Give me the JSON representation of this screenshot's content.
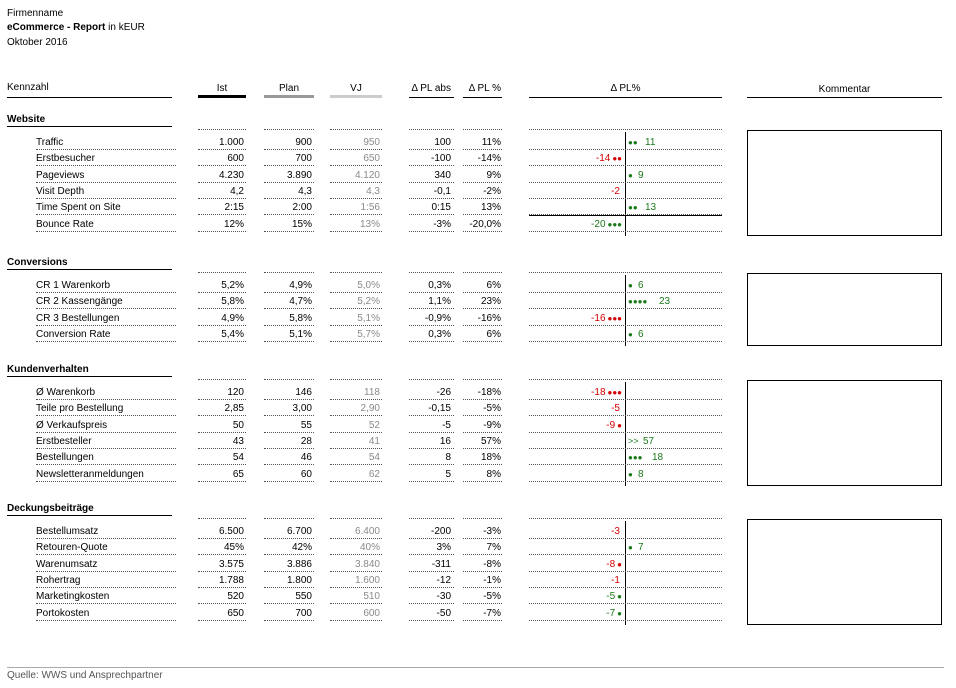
{
  "header": {
    "company": "Firmenname",
    "title_bold": "eCommerce - Report",
    "title_suffix": " in kEUR",
    "period": "Oktober 2016"
  },
  "columns": {
    "kennzahl": "Kennzahl",
    "ist": "Ist",
    "plan": "Plan",
    "vj": "VJ",
    "dpl_abs": "Δ PL abs",
    "dpl_pct": "Δ PL %",
    "dpl_chart": "Δ PL%",
    "kommentar": "Kommentar"
  },
  "colors": {
    "positive": "#1a7a1a",
    "negative": "#d40000",
    "vj": "#8a8a8a",
    "plan_bar": "#999999",
    "vj_bar": "#cccccc"
  },
  "sections": [
    {
      "title": "Website",
      "rows": [
        {
          "name": "Traffic",
          "ist": "1.000",
          "plan": "900",
          "vj": "950",
          "abs": "100",
          "pct": "11%",
          "bar": 11,
          "bar_label": "11",
          "dots": "●●"
        },
        {
          "name": "Erstbesucher",
          "ist": "600",
          "plan": "700",
          "vj": "650",
          "abs": "-100",
          "pct": "-14%",
          "bar": -14,
          "bar_label": "-14",
          "dots": "●●"
        },
        {
          "name": "Pageviews",
          "ist": "4.230",
          "plan": "3.890",
          "vj": "4.120",
          "abs": "340",
          "pct": "9%",
          "bar": 9,
          "bar_label": "9",
          "dots": "●"
        },
        {
          "name": "Visit Depth",
          "ist": "4,2",
          "plan": "4,3",
          "vj": "4,3",
          "abs": "-0,1",
          "pct": "-2%",
          "bar": -2,
          "bar_label": "-2",
          "dots": ""
        },
        {
          "name": "Time Spent on Site",
          "ist": "2:15",
          "plan": "2:00",
          "vj": "1:56",
          "abs": "0:15",
          "pct": "13%",
          "bar": 13,
          "bar_label": "13",
          "dots": "●●"
        },
        {
          "name": "Bounce Rate",
          "ist": "12%",
          "plan": "15%",
          "vj": "13%",
          "abs": "-3%",
          "pct": "-20,0%",
          "bar": -20,
          "bar_label": "-20",
          "dots": "●●●",
          "green_neg": true
        }
      ]
    },
    {
      "title": "Conversions",
      "rows": [
        {
          "name": "CR 1 Warenkorb",
          "ist": "5,2%",
          "plan": "4,9%",
          "vj": "5,0%",
          "abs": "0,3%",
          "pct": "6%",
          "bar": 6,
          "bar_label": "6",
          "dots": "●"
        },
        {
          "name": "CR 2 Kassengänge",
          "ist": "5,8%",
          "plan": "4,7%",
          "vj": "5,2%",
          "abs": "1,1%",
          "pct": "23%",
          "bar": 23,
          "bar_label": "23",
          "dots": "●●●●"
        },
        {
          "name": "CR 3 Bestellungen",
          "ist": "4,9%",
          "plan": "5,8%",
          "vj": "5,1%",
          "abs": "-0,9%",
          "pct": "-16%",
          "bar": -16,
          "bar_label": "-16",
          "dots": "●●●"
        },
        {
          "name": "Conversion Rate",
          "ist": "5,4%",
          "plan": "5,1%",
          "vj": "5,7%",
          "abs": "0,3%",
          "pct": "6%",
          "bar": 6,
          "bar_label": "6",
          "dots": "●"
        }
      ]
    },
    {
      "title": "Kundenverhalten",
      "rows": [
        {
          "name": "Ø Warenkorb",
          "ist": "120",
          "plan": "146",
          "vj": "118",
          "abs": "-26",
          "pct": "-18%",
          "bar": -18,
          "bar_label": "-18",
          "dots": "●●●"
        },
        {
          "name": "Teile pro Bestellung",
          "ist": "2,85",
          "plan": "3,00",
          "vj": "2,90",
          "abs": "-0,15",
          "pct": "-5%",
          "bar": -5,
          "bar_label": "-5",
          "dots": ""
        },
        {
          "name": "Ø Verkaufspreis",
          "ist": "50",
          "plan": "55",
          "vj": "52",
          "abs": "-5",
          "pct": "-9%",
          "bar": -9,
          "bar_label": "-9",
          "dots": "●"
        },
        {
          "name": "Erstbesteller",
          "ist": "43",
          "plan": "28",
          "vj": "41",
          "abs": "16",
          "pct": "57%",
          "bar": 57,
          "bar_label": "57",
          "dots": ">>"
        },
        {
          "name": "Bestellungen",
          "ist": "54",
          "plan": "46",
          "vj": "54",
          "abs": "8",
          "pct": "18%",
          "bar": 18,
          "bar_label": "18",
          "dots": "●●●"
        },
        {
          "name": "Newsletteranmeldungen",
          "ist": "65",
          "plan": "60",
          "vj": "62",
          "abs": "5",
          "pct": "8%",
          "bar": 8,
          "bar_label": "8",
          "dots": "●"
        }
      ]
    },
    {
      "title": "Deckungsbeiträge",
      "rows": [
        {
          "name": "Bestellumsatz",
          "ist": "6.500",
          "plan": "6.700",
          "vj": "6.400",
          "abs": "-200",
          "pct": "-3%",
          "bar": -3,
          "bar_label": "-3",
          "dots": ""
        },
        {
          "name": "Retouren-Quote",
          "ist": "45%",
          "plan": "42%",
          "vj": "40%",
          "abs": "3%",
          "pct": "7%",
          "bar": 7,
          "bar_label": "7",
          "dots": "●"
        },
        {
          "name": "Warenumsatz",
          "ist": "3.575",
          "plan": "3.886",
          "vj": "3.840",
          "abs": "-311",
          "pct": "-8%",
          "bar": -8,
          "bar_label": "-8",
          "dots": "●"
        },
        {
          "name": "Rohertrag",
          "ist": "1.788",
          "plan": "1.800",
          "vj": "1.600",
          "abs": "-12",
          "pct": "-1%",
          "bar": -1,
          "bar_label": "-1",
          "dots": ""
        },
        {
          "name": "Marketingkosten",
          "ist": "520",
          "plan": "550",
          "vj": "510",
          "abs": "-30",
          "pct": "-5%",
          "bar": -5,
          "bar_label": "-5",
          "dots": "●",
          "green_neg": true
        },
        {
          "name": "Portokosten",
          "ist": "650",
          "plan": "700",
          "vj": "600",
          "abs": "-50",
          "pct": "-7%",
          "bar": -7,
          "bar_label": "-7",
          "dots": "●",
          "green_neg": true
        }
      ]
    }
  ],
  "footer": {
    "source": "Quelle: WWS und Ansprechpartner"
  }
}
